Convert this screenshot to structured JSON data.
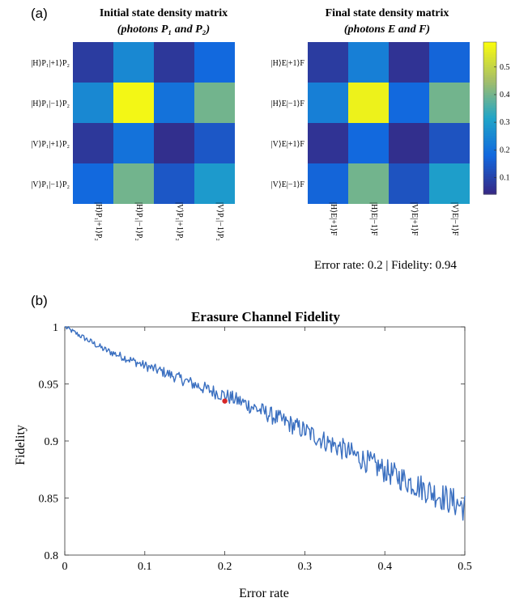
{
  "panel_a_label": "(a)",
  "panel_b_label": "(b)",
  "chart_data": [
    {
      "type": "heatmap",
      "title_line1": "Initial state density matrix",
      "title_line2": "(photons P₁ and P₂)",
      "row_labels": [
        "|H⟩P₁|+1⟩P₂",
        "|H⟩P₁|−1⟩P₂",
        "|V⟩P₁|+1⟩P₂",
        "|V⟩P₁|−1⟩P₂"
      ],
      "col_labels": [
        "|H⟩P₁|+1⟩P₂",
        "|H⟩P₁|−1⟩P₂",
        "|V⟩P₁|+1⟩P₂",
        "|V⟩P₁|−1⟩P₂"
      ],
      "values": [
        [
          0.08,
          0.25,
          0.07,
          0.18
        ],
        [
          0.25,
          0.58,
          0.2,
          0.4
        ],
        [
          0.07,
          0.2,
          0.05,
          0.14
        ],
        [
          0.18,
          0.4,
          0.14,
          0.29
        ]
      ]
    },
    {
      "type": "heatmap",
      "title_line1": "Final state density matrix",
      "title_line2": "(photons E and F)",
      "row_labels": [
        "|H⟩E|+1⟩F",
        "|H⟩E|−1⟩F",
        "|V⟩E|+1⟩F",
        "|V⟩E|−1⟩F"
      ],
      "col_labels": [
        "|H⟩E|+1⟩F",
        "|H⟩E|−1⟩F",
        "|V⟩E|+1⟩F",
        "|V⟩E|−1⟩F"
      ],
      "values": [
        [
          0.08,
          0.23,
          0.06,
          0.17
        ],
        [
          0.23,
          0.57,
          0.18,
          0.4
        ],
        [
          0.06,
          0.18,
          0.05,
          0.13
        ],
        [
          0.17,
          0.4,
          0.13,
          0.3
        ]
      ],
      "colorbar_ticks": [
        0.1,
        0.2,
        0.3,
        0.4,
        0.5
      ],
      "colorbar_range": [
        0.04,
        0.59
      ],
      "annotation": "Error rate: 0.2 |  Fidelity: 0.94"
    },
    {
      "type": "line",
      "title": "Erasure Channel Fidelity",
      "xlabel": "Error rate",
      "ylabel": "Fidelity",
      "xlim": [
        0,
        0.5
      ],
      "ylim": [
        0.8,
        1.0
      ],
      "xticks": [
        0,
        0.1,
        0.2,
        0.3,
        0.4,
        0.5
      ],
      "xtick_labels": [
        "0",
        "0.1",
        "0.2",
        "0.3",
        "0.4",
        "0.5"
      ],
      "yticks": [
        0.8,
        0.85,
        0.9,
        0.95,
        1.0
      ],
      "ytick_labels": [
        "0.8",
        "0.85",
        "0.9",
        "0.95",
        "1"
      ],
      "grid": false,
      "series": [
        {
          "color": "#3a6fc0",
          "x": [
            0,
            0.025,
            0.05,
            0.075,
            0.1,
            0.125,
            0.15,
            0.175,
            0.2,
            0.225,
            0.25,
            0.275,
            0.3,
            0.325,
            0.35,
            0.375,
            0.4,
            0.425,
            0.45,
            0.475,
            0.5
          ],
          "y": [
            1.0,
            0.99,
            0.98,
            0.973,
            0.966,
            0.96,
            0.953,
            0.946,
            0.94,
            0.933,
            0.925,
            0.917,
            0.909,
            0.9,
            0.892,
            0.883,
            0.874,
            0.866,
            0.858,
            0.85,
            0.842
          ]
        }
      ],
      "highlight_point": {
        "x": 0.2,
        "y": 0.935,
        "color": "#d62728"
      }
    }
  ]
}
